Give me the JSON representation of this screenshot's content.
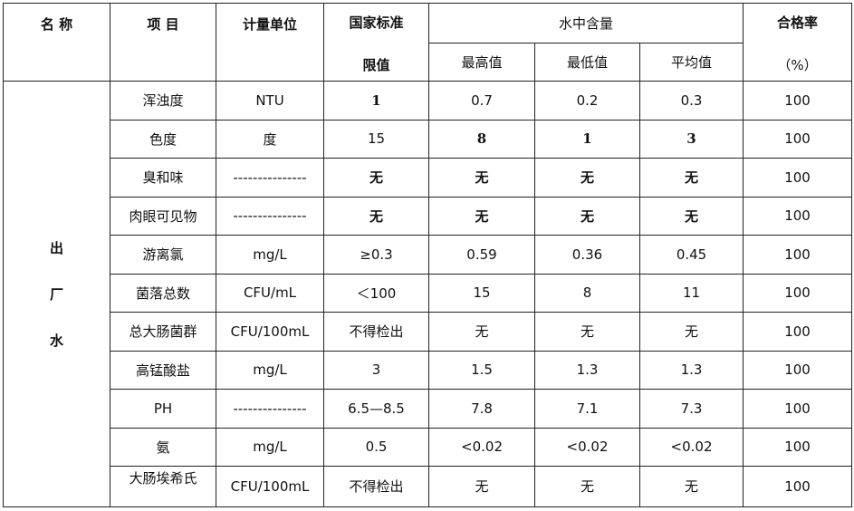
{
  "header": {
    "name": "名 称",
    "item": "项 目",
    "unit": "计量单位",
    "limit_line1": "国家标准",
    "limit_line2": "限值",
    "water_content": "水中含量",
    "max": "最高值",
    "min": "最低值",
    "avg": "平均值",
    "pass_rate_line1": "合格率",
    "pass_rate_line2": "（%）"
  },
  "group": {
    "chars": [
      "出",
      "厂",
      "水"
    ]
  },
  "table": {
    "rows": [
      [
        "浑浊度",
        "NTU",
        "1",
        "0.7",
        "0.2",
        "0.3",
        "100"
      ],
      [
        "色度",
        "度",
        "15",
        "8",
        "1",
        "3",
        "100"
      ],
      [
        "臭和味",
        "---------------",
        "无",
        "无",
        "无",
        "无",
        "100"
      ],
      [
        "肉眼可见物",
        "---------------",
        "无",
        "无",
        "无",
        "无",
        "100"
      ],
      [
        "游离氯",
        "mg/L",
        "≥0.3",
        "0.59",
        "0.36",
        "0.45",
        "100"
      ],
      [
        "菌落总数",
        "CFU/mL",
        "＜100",
        "15",
        "8",
        "11",
        "100"
      ],
      [
        "总大肠菌群",
        "CFU/100mL",
        "不得检出",
        "无",
        "无",
        "无",
        "100"
      ],
      [
        "高锰酸盐",
        "mg/L",
        "3",
        "1.5",
        "1.3",
        "1.3",
        "100"
      ],
      [
        "PH",
        "---------------",
        "6.5—8.5",
        "7.8",
        "7.1",
        "7.3",
        "100"
      ],
      [
        "氨",
        "mg/L",
        "0.5",
        "<0.02",
        "<0.02",
        "<0.02",
        "100"
      ],
      [
        "大肠埃希氏",
        "CFU/100mL",
        "不得检出",
        "无",
        "无",
        "无",
        "100"
      ]
    ]
  }
}
